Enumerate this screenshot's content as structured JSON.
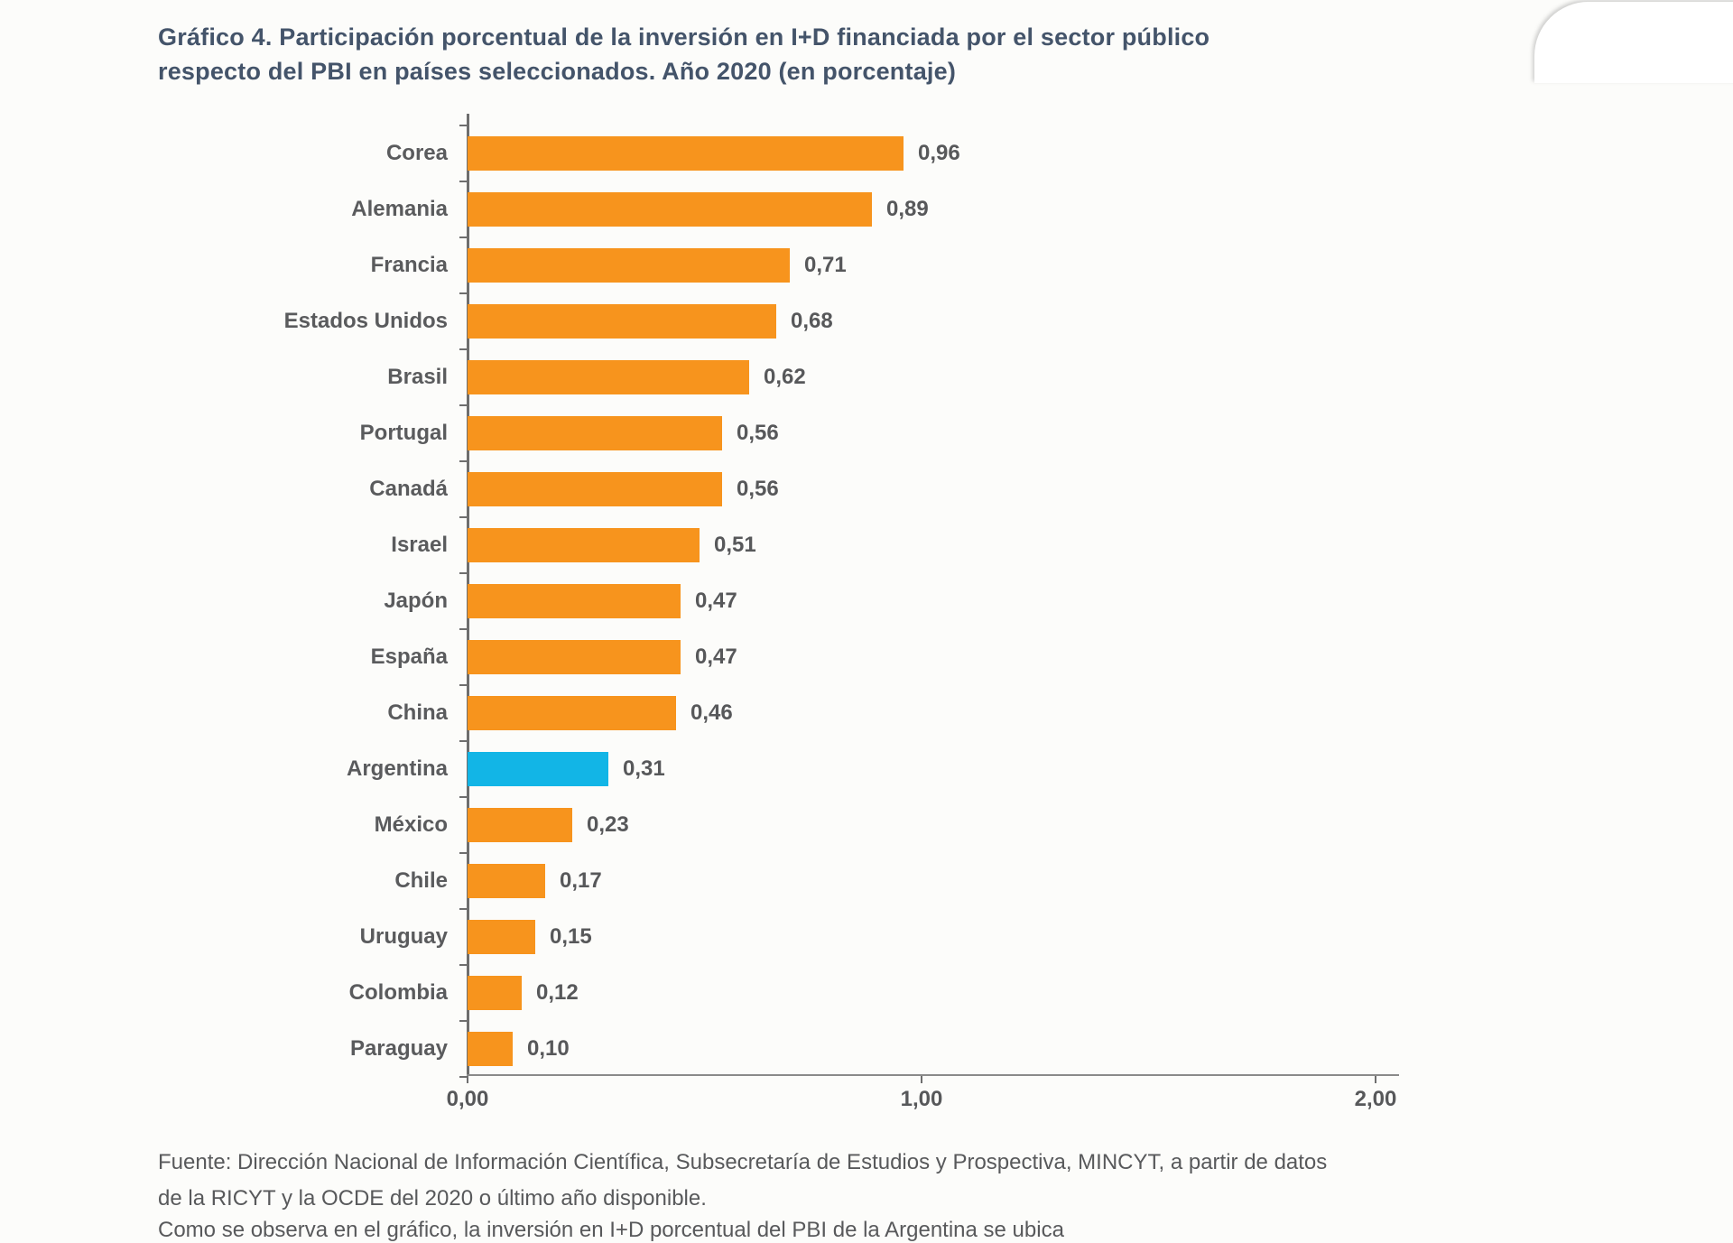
{
  "title": {
    "line1": "Gráfico 4. Participación porcentual de la inversión en I+D financiada por el sector público",
    "line2": "respecto del PBI en países seleccionados. Año 2020 (en porcentaje)"
  },
  "chart_data": {
    "type": "bar",
    "orientation": "horizontal",
    "categories": [
      "Corea",
      "Alemania",
      "Francia",
      "Estados Unidos",
      "Brasil",
      "Portugal",
      "Canadá",
      "Israel",
      "Japón",
      "España",
      "China",
      "Argentina",
      "México",
      "Chile",
      "Uruguay",
      "Colombia",
      "Paraguay"
    ],
    "values": [
      0.96,
      0.89,
      0.71,
      0.68,
      0.62,
      0.56,
      0.56,
      0.51,
      0.47,
      0.47,
      0.46,
      0.31,
      0.23,
      0.17,
      0.15,
      0.12,
      0.1
    ],
    "value_labels": [
      "0,96",
      "0,89",
      "0,71",
      "0,68",
      "0,62",
      "0,56",
      "0,56",
      "0,51",
      "0,47",
      "0,47",
      "0,46",
      "0,31",
      "0,23",
      "0,17",
      "0,15",
      "0,12",
      "0,10"
    ],
    "highlight_category": "Argentina",
    "title": "Gráfico 4. Participación porcentual de la inversión en I+D financiada por el sector público respecto del PBI en países seleccionados. Año 2020 (en porcentaje)",
    "xlabel": "",
    "ylabel": "",
    "xlim": [
      0,
      2
    ],
    "x_ticks": [
      0,
      1,
      2
    ],
    "x_tick_labels": [
      "0,00",
      "1,00",
      "2,00"
    ],
    "grid": false,
    "legend": false,
    "colors": {
      "bar": "#f7941d",
      "highlight": "#12b5e6",
      "axis": "#6e6e6e",
      "text": "#57585a",
      "title": "#44546a"
    }
  },
  "source": {
    "line1": "Fuente: Dirección Nacional de Información Científica, Subsecretaría de Estudios y Prospectiva, MINCYT, a partir de datos",
    "line2": "de la RICYT y la OCDE del 2020 o último año disponible."
  },
  "clipped_text": "Como se observa en el gráfico, la inversión en I+D porcentual del PBI de la Argentina se ubica"
}
